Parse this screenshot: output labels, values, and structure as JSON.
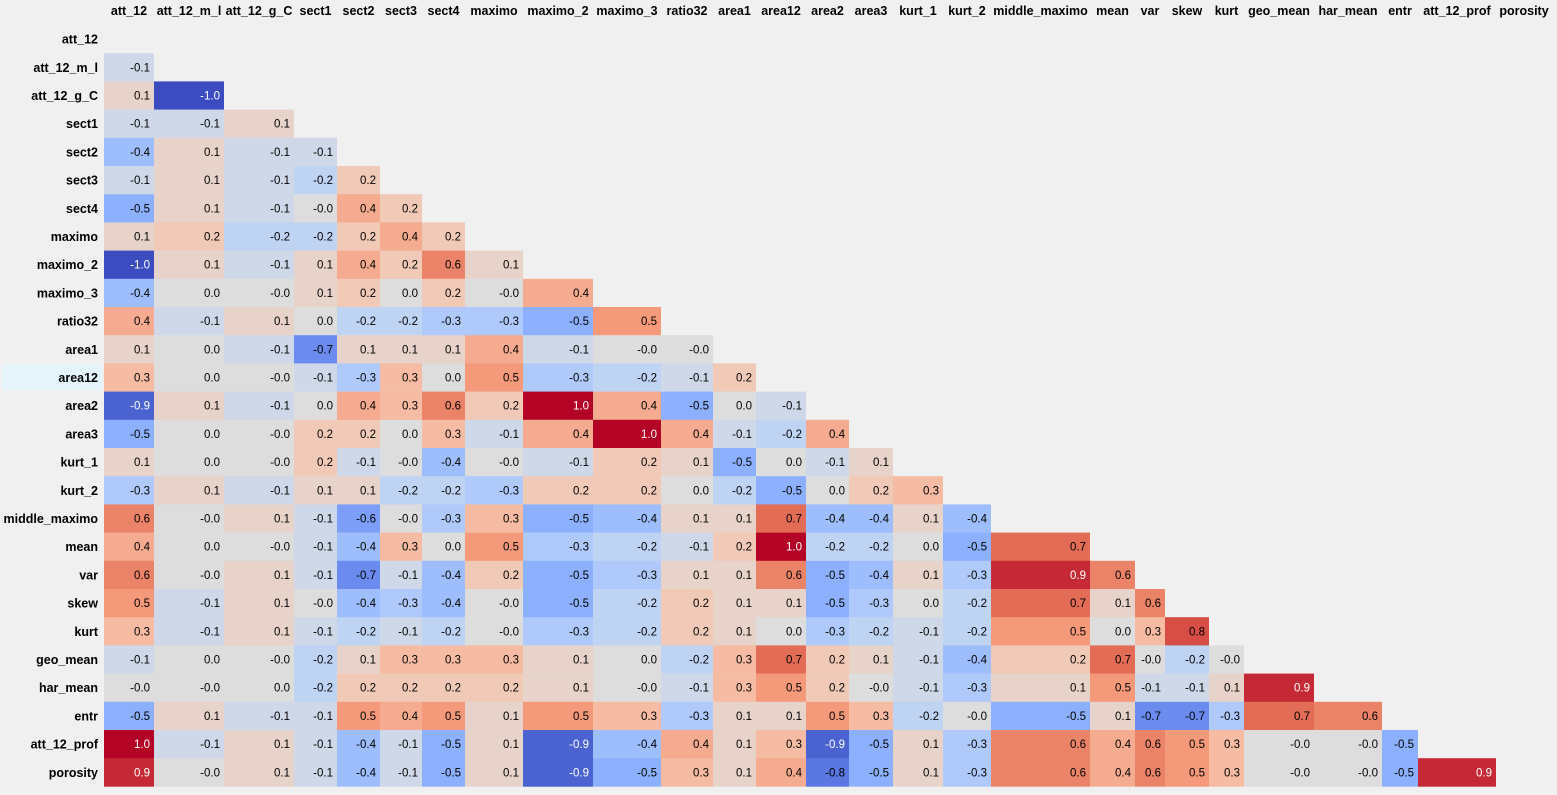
{
  "chart_data": {
    "type": "heatmap",
    "title": "",
    "colormap": "coolwarm",
    "value_range": [
      -1,
      1
    ],
    "mask": "upper triangle including diagonal",
    "selected_row": "area12",
    "columns": [
      "att_12",
      "att_12_m_l",
      "att_12_g_C",
      "sect1",
      "sect2",
      "sect3",
      "sect4",
      "maximo",
      "maximo_2",
      "maximo_3",
      "ratio32",
      "area1",
      "area12",
      "area2",
      "area3",
      "kurt_1",
      "kurt_2",
      "middle_maximo",
      "mean",
      "var",
      "skew",
      "kurt",
      "geo_mean",
      "har_mean",
      "entr",
      "att_12_prof",
      "porosity"
    ],
    "rows": [
      "att_12",
      "att_12_m_l",
      "att_12_g_C",
      "sect1",
      "sect2",
      "sect3",
      "sect4",
      "maximo",
      "maximo_2",
      "maximo_3",
      "ratio32",
      "area1",
      "area12",
      "area2",
      "area3",
      "kurt_1",
      "kurt_2",
      "middle_maximo",
      "mean",
      "var",
      "skew",
      "kurt",
      "geo_mean",
      "har_mean",
      "entr",
      "att_12_prof",
      "porosity"
    ],
    "values": [
      [],
      [
        -0.1
      ],
      [
        0.1,
        -1.0
      ],
      [
        -0.1,
        -0.1,
        0.1
      ],
      [
        -0.4,
        0.1,
        -0.1,
        -0.1
      ],
      [
        -0.1,
        0.1,
        -0.1,
        -0.2,
        0.2
      ],
      [
        -0.5,
        0.1,
        -0.1,
        -0.0,
        0.4,
        0.2
      ],
      [
        0.1,
        0.2,
        -0.2,
        -0.2,
        0.2,
        0.4,
        0.2
      ],
      [
        -1.0,
        0.1,
        -0.1,
        0.1,
        0.4,
        0.2,
        0.6,
        0.1
      ],
      [
        -0.4,
        0.0,
        -0.0,
        0.1,
        0.2,
        0.0,
        0.2,
        -0.0,
        0.4
      ],
      [
        0.4,
        -0.1,
        0.1,
        0.0,
        -0.2,
        -0.2,
        -0.3,
        -0.3,
        -0.5,
        0.5
      ],
      [
        0.1,
        0.0,
        -0.1,
        -0.7,
        0.1,
        0.1,
        0.1,
        0.4,
        -0.1,
        -0.0,
        -0.0
      ],
      [
        0.3,
        0.0,
        -0.0,
        -0.1,
        -0.3,
        0.3,
        0.0,
        0.5,
        -0.3,
        -0.2,
        -0.1,
        0.2
      ],
      [
        -0.9,
        0.1,
        -0.1,
        0.0,
        0.4,
        0.3,
        0.6,
        0.2,
        1.0,
        0.4,
        -0.5,
        0.0,
        -0.1
      ],
      [
        -0.5,
        0.0,
        -0.0,
        0.2,
        0.2,
        0.0,
        0.3,
        -0.1,
        0.4,
        1.0,
        0.4,
        -0.1,
        -0.2,
        0.4
      ],
      [
        0.1,
        0.0,
        -0.0,
        0.2,
        -0.1,
        -0.0,
        -0.4,
        -0.0,
        -0.1,
        0.2,
        0.1,
        -0.5,
        0.0,
        -0.1,
        0.1
      ],
      [
        -0.3,
        0.1,
        -0.1,
        0.1,
        0.1,
        -0.2,
        -0.2,
        -0.3,
        0.2,
        0.2,
        0.0,
        -0.2,
        -0.5,
        0.0,
        0.2,
        0.3
      ],
      [
        0.6,
        -0.0,
        0.1,
        -0.1,
        -0.6,
        -0.0,
        -0.3,
        0.3,
        -0.5,
        -0.4,
        0.1,
        0.1,
        0.7,
        -0.4,
        -0.4,
        0.1,
        -0.4
      ],
      [
        0.4,
        0.0,
        -0.0,
        -0.1,
        -0.4,
        0.3,
        0.0,
        0.5,
        -0.3,
        -0.2,
        -0.1,
        0.2,
        1.0,
        -0.2,
        -0.2,
        0.0,
        -0.5,
        0.7
      ],
      [
        0.6,
        -0.0,
        0.1,
        -0.1,
        -0.7,
        -0.1,
        -0.4,
        0.2,
        -0.5,
        -0.3,
        0.1,
        0.1,
        0.6,
        -0.5,
        -0.4,
        0.1,
        -0.3,
        0.9,
        0.6
      ],
      [
        0.5,
        -0.1,
        0.1,
        -0.0,
        -0.4,
        -0.3,
        -0.4,
        -0.0,
        -0.5,
        -0.2,
        0.2,
        0.1,
        0.1,
        -0.5,
        -0.3,
        0.0,
        -0.2,
        0.7,
        0.1,
        0.6
      ],
      [
        0.3,
        -0.1,
        0.1,
        -0.1,
        -0.2,
        -0.1,
        -0.2,
        -0.0,
        -0.3,
        -0.2,
        0.2,
        0.1,
        0.0,
        -0.3,
        -0.2,
        -0.1,
        -0.2,
        0.5,
        0.0,
        0.3,
        0.8
      ],
      [
        -0.1,
        0.0,
        -0.0,
        -0.2,
        0.1,
        0.3,
        0.3,
        0.3,
        0.1,
        0.0,
        -0.2,
        0.3,
        0.7,
        0.2,
        0.1,
        -0.1,
        -0.4,
        0.2,
        0.7,
        -0.0,
        -0.2,
        -0.0
      ],
      [
        -0.0,
        -0.0,
        0.0,
        -0.2,
        0.2,
        0.2,
        0.2,
        0.2,
        0.1,
        -0.0,
        -0.1,
        0.3,
        0.5,
        0.2,
        -0.0,
        -0.1,
        -0.3,
        0.1,
        0.5,
        -0.1,
        -0.1,
        0.1,
        0.9
      ],
      [
        -0.5,
        0.1,
        -0.1,
        -0.1,
        0.5,
        0.4,
        0.5,
        0.1,
        0.5,
        0.3,
        -0.3,
        0.1,
        0.1,
        0.5,
        0.3,
        -0.2,
        -0.0,
        -0.5,
        0.1,
        -0.7,
        -0.7,
        -0.3,
        0.7,
        0.6
      ],
      [
        1.0,
        -0.1,
        0.1,
        -0.1,
        -0.4,
        -0.1,
        -0.5,
        0.1,
        -0.9,
        -0.4,
        0.4,
        0.1,
        0.3,
        -0.9,
        -0.5,
        0.1,
        -0.3,
        0.6,
        0.4,
        0.6,
        0.5,
        0.3,
        -0.0,
        -0.0,
        -0.5
      ],
      [
        0.9,
        -0.0,
        0.1,
        -0.1,
        -0.4,
        -0.1,
        -0.5,
        0.1,
        -0.9,
        -0.5,
        0.3,
        0.1,
        0.4,
        -0.8,
        -0.5,
        0.1,
        -0.3,
        0.6,
        0.4,
        0.6,
        0.5,
        0.3,
        -0.0,
        -0.0,
        -0.5,
        0.9
      ]
    ]
  }
}
